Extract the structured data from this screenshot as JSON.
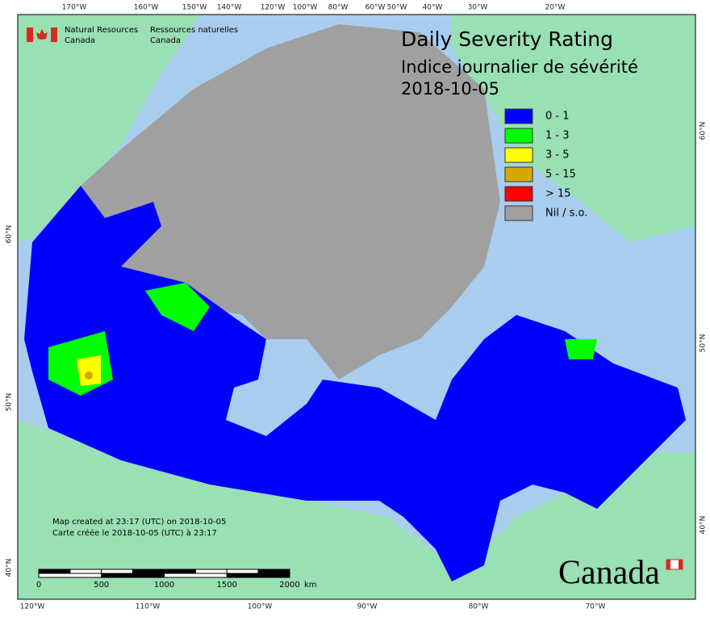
{
  "header": {
    "agency_en": "Natural Resources",
    "agency_en_2": "Canada",
    "agency_fr": "Ressources naturelles",
    "agency_fr_2": "Canada"
  },
  "title": {
    "line1": "Daily Severity Rating",
    "line2": "Indice journalier de sévérité",
    "date": "2018-10-05"
  },
  "legend": [
    {
      "label": "0 - 1",
      "color": "#0000ff"
    },
    {
      "label": "1 - 3",
      "color": "#00ff00"
    },
    {
      "label": "3 - 5",
      "color": "#ffff00"
    },
    {
      "label": "5 - 15",
      "color": "#d4aa00"
    },
    {
      "label": "> 15",
      "color": "#ff0000"
    },
    {
      "label": "Nil / s.o.",
      "color": "#a0a0a0"
    }
  ],
  "notes": {
    "created_en": "Map created at 23:17 (UTC) on 2018-10-05",
    "created_fr": "Carte créée le 2018-10-05 (UTC) à 23:17"
  },
  "scale": {
    "ticks": [
      0,
      500,
      1000,
      1500,
      2000
    ],
    "unit": "km"
  },
  "graticule": {
    "top": [
      "170°W",
      "160°W",
      "150°W",
      "140°W",
      "120°W",
      "100°W",
      "80°W",
      "60°W",
      "50°W",
      "40°W",
      "30°W",
      "20°W"
    ],
    "bottom": [
      "120°W",
      "110°W",
      "100°W",
      "90°W",
      "80°W",
      "70°W"
    ],
    "left": [
      "60°N",
      "50°N",
      "40°N"
    ],
    "right": [
      "60°N",
      "50°N",
      "40°N"
    ]
  },
  "wordmark": "Canada"
}
